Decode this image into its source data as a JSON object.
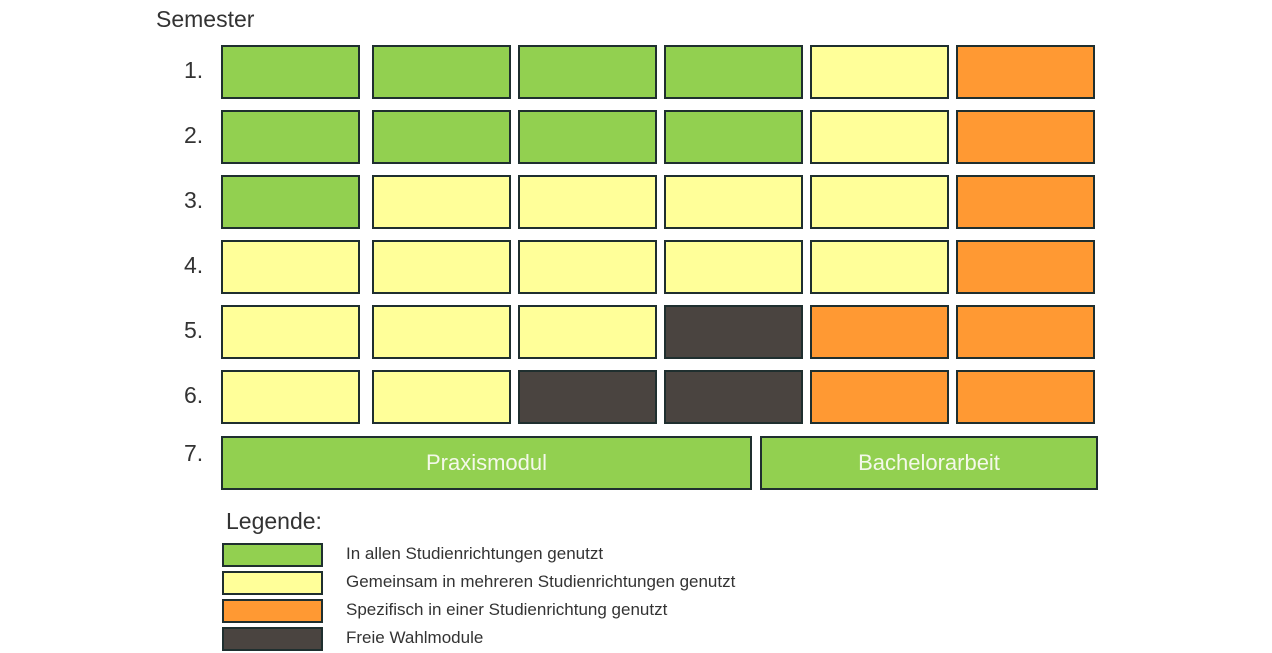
{
  "title": "Semester",
  "colors": {
    "green": "#92d050",
    "yellow": "#ffff99",
    "orange": "#ff9933",
    "dark": "#4a4440"
  },
  "rows": [
    {
      "label": "1.",
      "cells": [
        "green",
        "green",
        "green",
        "green",
        "yellow",
        "orange"
      ]
    },
    {
      "label": "2.",
      "cells": [
        "green",
        "green",
        "green",
        "green",
        "yellow",
        "orange"
      ]
    },
    {
      "label": "3.",
      "cells": [
        "green",
        "yellow",
        "yellow",
        "yellow",
        "yellow",
        "orange"
      ]
    },
    {
      "label": "4.",
      "cells": [
        "yellow",
        "yellow",
        "yellow",
        "yellow",
        "yellow",
        "orange"
      ]
    },
    {
      "label": "5.",
      "cells": [
        "yellow",
        "yellow",
        "yellow",
        "dark",
        "orange",
        "orange"
      ]
    },
    {
      "label": "6.",
      "cells": [
        "yellow",
        "yellow",
        "dark",
        "dark",
        "orange",
        "orange"
      ]
    }
  ],
  "row7": {
    "label": "7.",
    "praxismodul": "Praxismodul",
    "bachelorarbeit": "Bachelorarbeit"
  },
  "legend": {
    "title": "Legende:",
    "items": [
      {
        "color": "green",
        "label": "In allen Studienrichtungen genutzt"
      },
      {
        "color": "yellow",
        "label": "Gemeinsam in mehreren Studienrichtungen genutzt"
      },
      {
        "color": "orange",
        "label": "Spezifisch in einer Studienrichtung genutzt"
      },
      {
        "color": "dark",
        "label": "Freie Wahlmodule"
      }
    ]
  }
}
